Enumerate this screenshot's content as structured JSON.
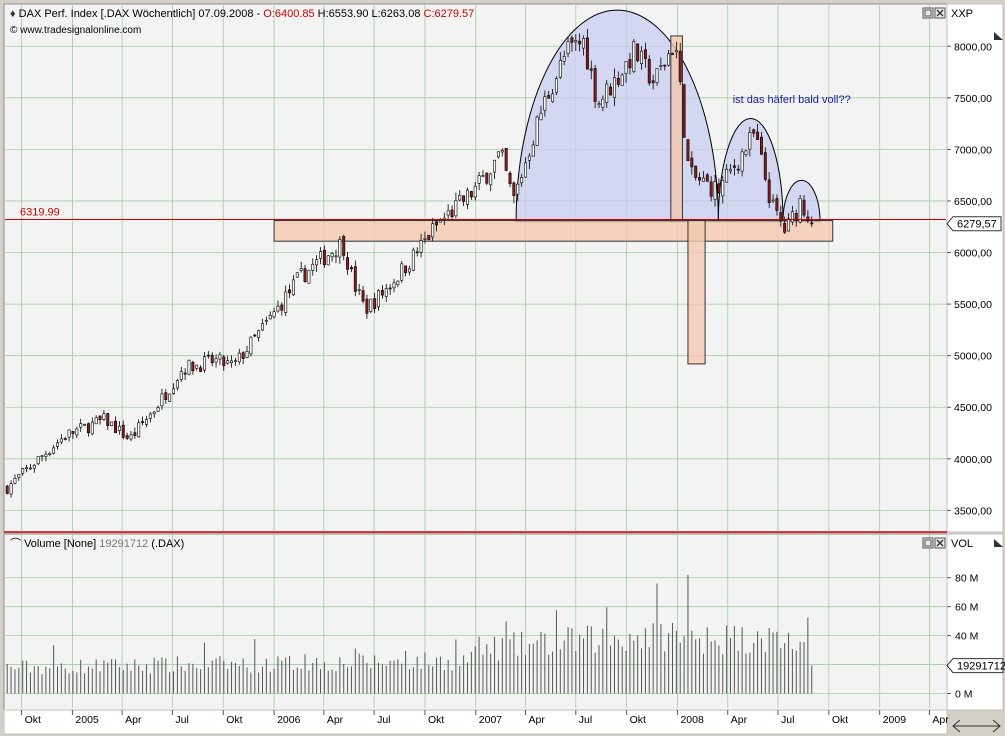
{
  "price_panel": {
    "header_prefix": "DAX Perf. Index [.DAX  Wöchentlich] 07.09.2008 - ",
    "header_open": "O:6400.85",
    "header_high": " H:6553.90",
    "header_low": " L:6263.08",
    "header_close": " C:6279.57",
    "source": "www.tradesignalonline.com",
    "axis_unit": "XXP",
    "level_label": "6319.99",
    "last_price": "6279,57",
    "annotation": "ist das häferl bald voll??"
  },
  "volume_panel": {
    "header_prefix": "Volume [None] ",
    "header_value": "19291712",
    "header_suffix": " (.DAX)",
    "axis_unit": "VOL",
    "last_volume": "19291712"
  },
  "colors": {
    "up_candle": "#ffffff",
    "down_candle": "#8b1a1a",
    "level_line": "#cc0000",
    "arc_fill": "#c8cdf0",
    "box_fill": "#f5c8b0",
    "annotation": "#1a1aa0",
    "background": "#f3f3f3"
  },
  "chart_data": {
    "type": "candlestick",
    "series_name": "DAX Perf. Index",
    "timeframe": "weekly",
    "ylim": [
      3300,
      8400
    ],
    "yticks": [
      3500,
      4000,
      4500,
      5000,
      5500,
      6000,
      6500,
      7000,
      7500,
      8000
    ],
    "ytick_labels": [
      "3500,00",
      "4000,00",
      "4500,00",
      "5000,00",
      "5500,00",
      "6000,00",
      "6500,00",
      "7000,00",
      "7500,00",
      "8000,00"
    ],
    "x_range": [
      "2004-09-01",
      "2009-05-01"
    ],
    "xtick_dates": [
      "2004-10-01",
      "2005-01-01",
      "2005-04-01",
      "2005-07-01",
      "2005-10-01",
      "2006-01-01",
      "2006-04-01",
      "2006-07-01",
      "2006-10-01",
      "2007-01-01",
      "2007-04-01",
      "2007-07-01",
      "2007-10-01",
      "2008-01-01",
      "2008-04-01",
      "2008-07-01",
      "2008-10-01",
      "2009-01-01",
      "2009-04-01"
    ],
    "xtick_labels": [
      "Okt",
      "2005",
      "Apr",
      "Jul",
      "Okt",
      "2006",
      "Apr",
      "Jul",
      "Okt",
      "2007",
      "Apr",
      "Jul",
      "Okt",
      "2008",
      "Apr",
      "Jul",
      "Okt",
      "2009",
      "Apr"
    ],
    "first_week": "2004-09-05",
    "close_path": [
      [
        "2004-09-05",
        3720
      ],
      [
        "2004-11-01",
        4000
      ],
      [
        "2004-12-20",
        4230
      ],
      [
        "2005-03-01",
        4380
      ],
      [
        "2005-04-15",
        4190
      ],
      [
        "2005-06-01",
        4500
      ],
      [
        "2005-07-20",
        4880
      ],
      [
        "2005-09-15",
        4950
      ],
      [
        "2005-10-20",
        4900
      ],
      [
        "2005-12-31",
        5400
      ],
      [
        "2006-02-15",
        5750
      ],
      [
        "2006-03-31",
        5950
      ],
      [
        "2006-05-05",
        6100
      ],
      [
        "2006-05-25",
        5700
      ],
      [
        "2006-06-15",
        5450
      ],
      [
        "2006-07-15",
        5600
      ],
      [
        "2006-09-01",
        5900
      ],
      [
        "2006-10-20",
        6250
      ],
      [
        "2006-12-29",
        6600
      ],
      [
        "2007-02-15",
        6950
      ],
      [
        "2007-03-10",
        6500
      ],
      [
        "2007-05-01",
        7400
      ],
      [
        "2007-06-15",
        7950
      ],
      [
        "2007-07-15",
        8050
      ],
      [
        "2007-08-10",
        7450
      ],
      [
        "2007-09-15",
        7700
      ],
      [
        "2007-10-15",
        7950
      ],
      [
        "2007-11-20",
        7650
      ],
      [
        "2007-12-28",
        8050
      ],
      [
        "2008-01-22",
        6750
      ],
      [
        "2008-03-15",
        6600
      ],
      [
        "2008-04-20",
        6900
      ],
      [
        "2008-05-20",
        7150
      ],
      [
        "2008-06-20",
        6450
      ],
      [
        "2008-07-15",
        6200
      ],
      [
        "2008-08-10",
        6500
      ],
      [
        "2008-09-05",
        6279.57
      ]
    ],
    "last_close": 6279.57,
    "level_line": 6319.99,
    "volume_ylim": [
      -10,
      95
    ],
    "volume_yticks": [
      0,
      20,
      40,
      60,
      80
    ],
    "volume_ytick_labels": [
      "0 M",
      "20 M",
      "40 M",
      "60 M",
      "80 M"
    ],
    "volume_last": 19291712,
    "pattern_arcs": [
      {
        "start": "2007-03-15",
        "end": "2008-03-15",
        "base": 6300,
        "top": 8350
      },
      {
        "start": "2008-03-15",
        "end": "2008-07-10",
        "base": 6300,
        "top": 7300
      },
      {
        "start": "2008-07-10",
        "end": "2008-09-15",
        "base": 6300,
        "top": 6700
      }
    ],
    "pattern_boxes": [
      {
        "start": "2006-01-01",
        "end": "2008-10-08",
        "low": 6110,
        "high": 6310
      },
      {
        "start": "2007-12-20",
        "end": "2008-01-10",
        "low": 6310,
        "high": 8100
      },
      {
        "start": "2008-01-20",
        "end": "2008-02-20",
        "low": 4920,
        "high": 6310
      }
    ]
  }
}
